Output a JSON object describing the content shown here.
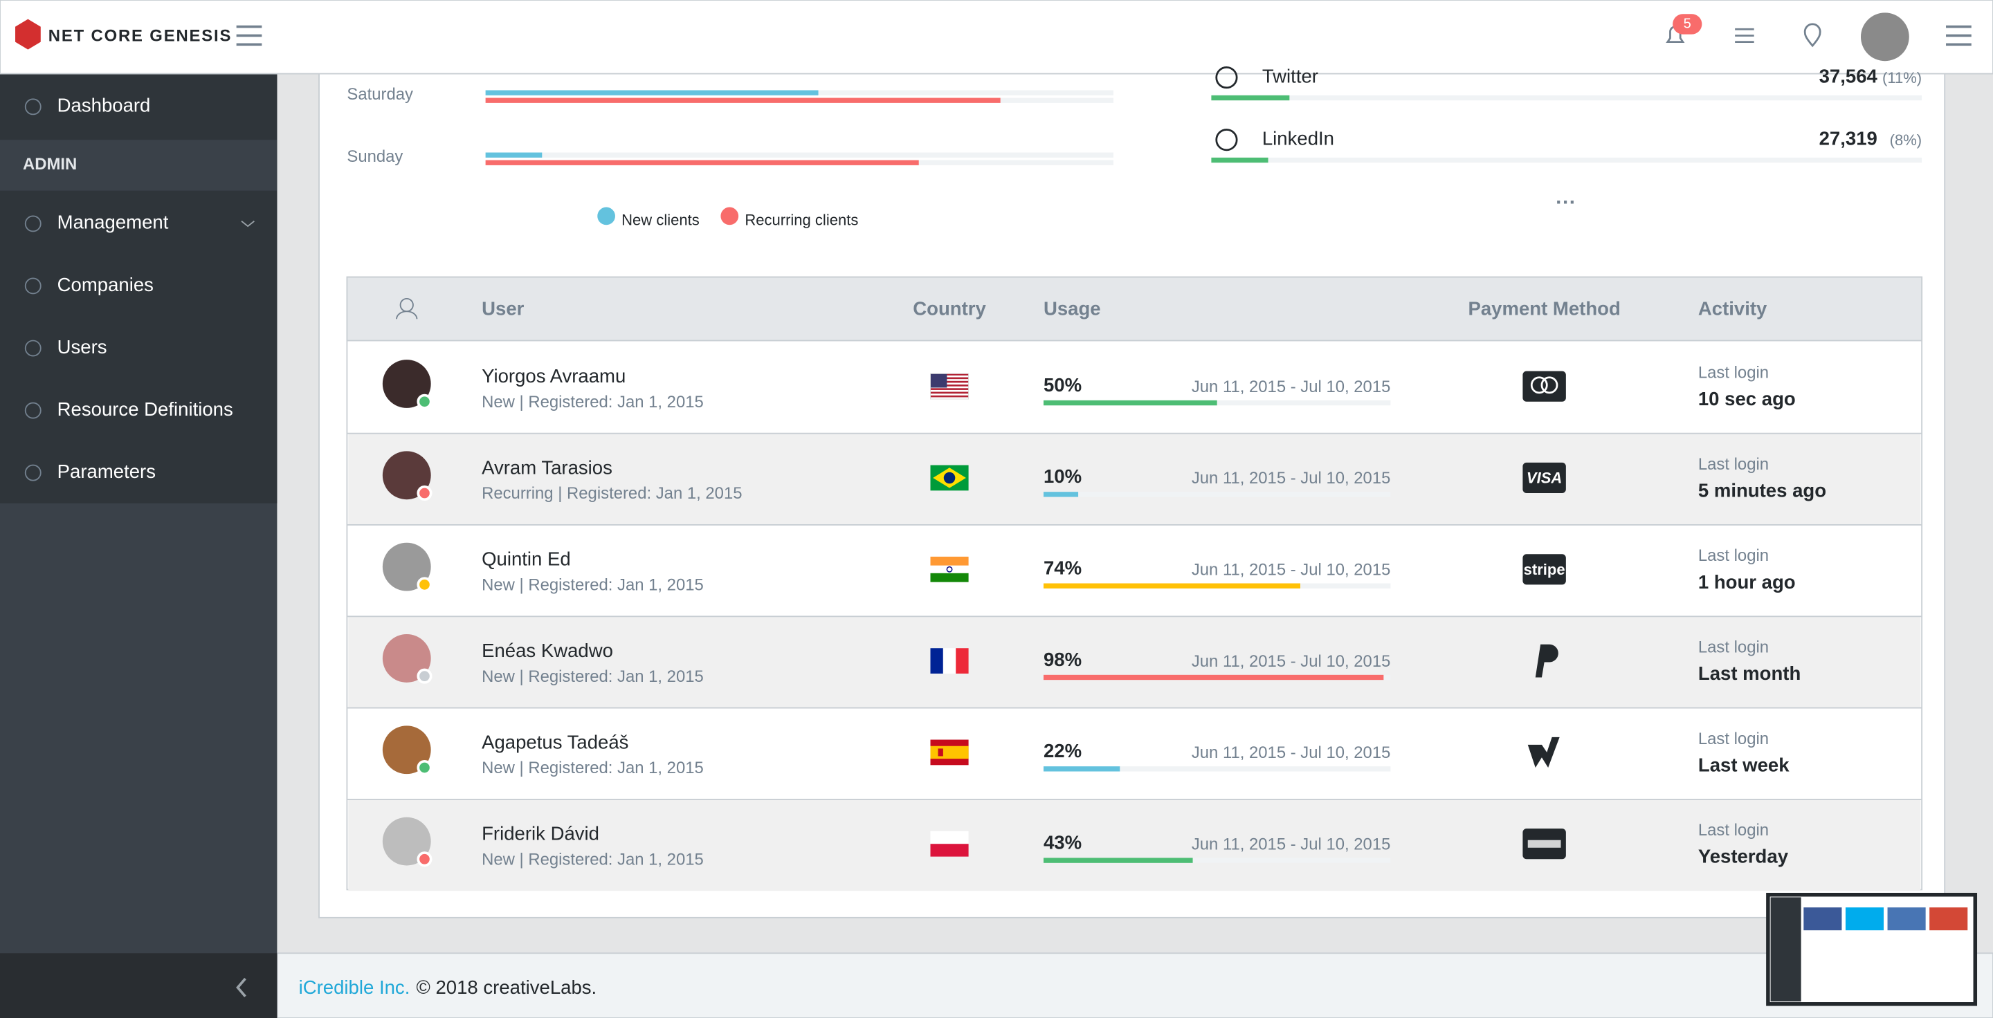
{
  "header": {
    "brand": "NET CORE GENESIS",
    "notifications": "5"
  },
  "sidebar": {
    "items": [
      "Dashboard",
      "Management",
      "Companies",
      "Users",
      "Resource Definitions",
      "Parameters"
    ],
    "section": "ADMIN"
  },
  "traffic": {
    "days": [
      {
        "label": "Saturday",
        "new": 53,
        "recurring": 82
      },
      {
        "label": "Sunday",
        "new": 9,
        "recurring": 69
      }
    ],
    "legend": [
      {
        "name": "New clients",
        "color": "#63c2de"
      },
      {
        "name": "Recurring clients",
        "color": "#f86c6b"
      }
    ]
  },
  "social": [
    {
      "name": "Twitter",
      "count": "37,564",
      "percent": 11,
      "percent_label": "(11%)"
    },
    {
      "name": "LinkedIn",
      "count": "27,319",
      "percent": 8,
      "percent_label": "(8%)"
    }
  ],
  "table": {
    "columns": [
      "User",
      "Country",
      "Usage",
      "Payment Method",
      "Activity"
    ],
    "rows": [
      {
        "name": "Yiorgos Avraamu",
        "meta": "New | Registered: Jan 1, 2015",
        "usage": 50,
        "usage_label": "50%",
        "period": "Jun 11, 2015 - Jul 10, 2015",
        "usage_color": "#4dbd74",
        "status_color": "#4dbd74",
        "activity_label": "Last login",
        "activity": "10 sec ago"
      },
      {
        "name": "Avram Tarasios",
        "meta": "Recurring | Registered: Jan 1, 2015",
        "usage": 10,
        "usage_label": "10%",
        "period": "Jun 11, 2015 - Jul 10, 2015",
        "usage_color": "#63c2de",
        "status_color": "#f86c6b",
        "activity_label": "Last login",
        "activity": "5 minutes ago",
        "payment_text": "VISA"
      },
      {
        "name": "Quintin Ed",
        "meta": "New | Registered: Jan 1, 2015",
        "usage": 74,
        "usage_label": "74%",
        "period": "Jun 11, 2015 - Jul 10, 2015",
        "usage_color": "#ffc107",
        "status_color": "#ffc107",
        "activity_label": "Last login",
        "activity": "1 hour ago",
        "payment_text": "stripe"
      },
      {
        "name": "Enéas Kwadwo",
        "meta": "New | Registered: Jan 1, 2015",
        "usage": 98,
        "usage_label": "98%",
        "period": "Jun 11, 2015 - Jul 10, 2015",
        "usage_color": "#f86c6b",
        "status_color": "#c8ced3",
        "activity_label": "Last login",
        "activity": "Last month"
      },
      {
        "name": "Agapetus Tadeáš",
        "meta": "New | Registered: Jan 1, 2015",
        "usage": 22,
        "usage_label": "22%",
        "period": "Jun 11, 2015 - Jul 10, 2015",
        "usage_color": "#63c2de",
        "status_color": "#4dbd74",
        "activity_label": "Last login",
        "activity": "Last week"
      },
      {
        "name": "Friderik Dávid",
        "meta": "New | Registered: Jan 1, 2015",
        "usage": 43,
        "usage_label": "43%",
        "period": "Jun 11, 2015 - Jul 10, 2015",
        "usage_color": "#4dbd74",
        "status_color": "#f86c6b",
        "activity_label": "Last login",
        "activity": "Yesterday"
      }
    ]
  },
  "footer": {
    "company": "iCredible Inc.",
    "copyright": "© 2018 creativeLabs."
  }
}
